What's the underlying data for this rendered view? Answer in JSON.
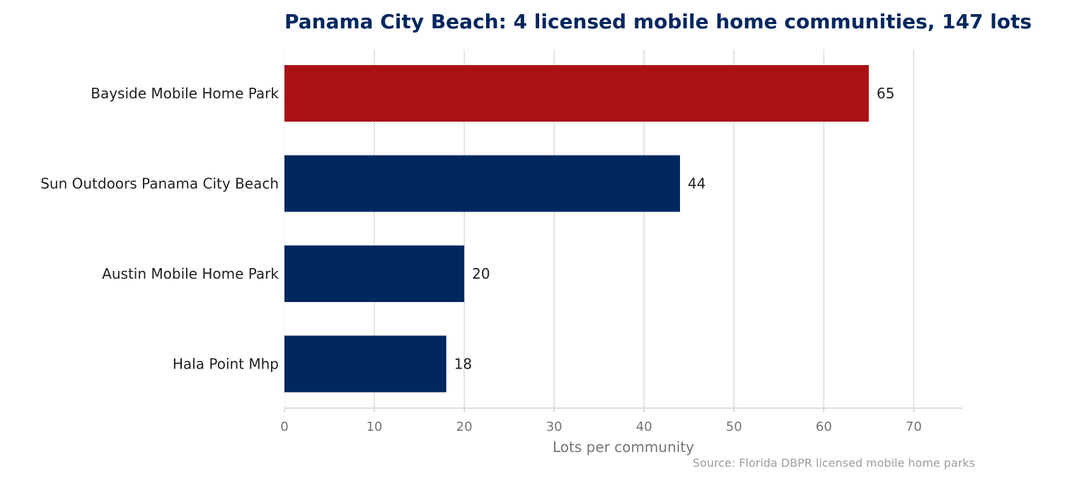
{
  "chart_data": {
    "type": "bar",
    "orientation": "horizontal",
    "title": "Panama City Beach: 4 licensed mobile home communities, 147 lots",
    "categories": [
      "Bayside Mobile Home Park",
      "Sun Outdoors Panama City Beach",
      "Austin Mobile Home Park",
      "Hala Point Mhp"
    ],
    "values": [
      65,
      44,
      20,
      18
    ],
    "value_labels": [
      "65",
      "44",
      "20",
      "18"
    ],
    "xlabel": "Lots per community",
    "ylabel": "",
    "xlim": [
      0,
      75.4
    ],
    "xticks": [
      0,
      10,
      20,
      30,
      40,
      50,
      60,
      70
    ],
    "xtick_labels": [
      "0",
      "10",
      "20",
      "30",
      "40",
      "50",
      "60",
      "70"
    ],
    "grid": "vertical",
    "source": "Source: Florida DBPR licensed mobile home parks",
    "colors": {
      "highlight": "#a81116",
      "default": "#00275f",
      "grid": "#dcdcd6",
      "axis": "#d4d6c8",
      "title": "#00275f"
    },
    "highlight_index": 0
  }
}
